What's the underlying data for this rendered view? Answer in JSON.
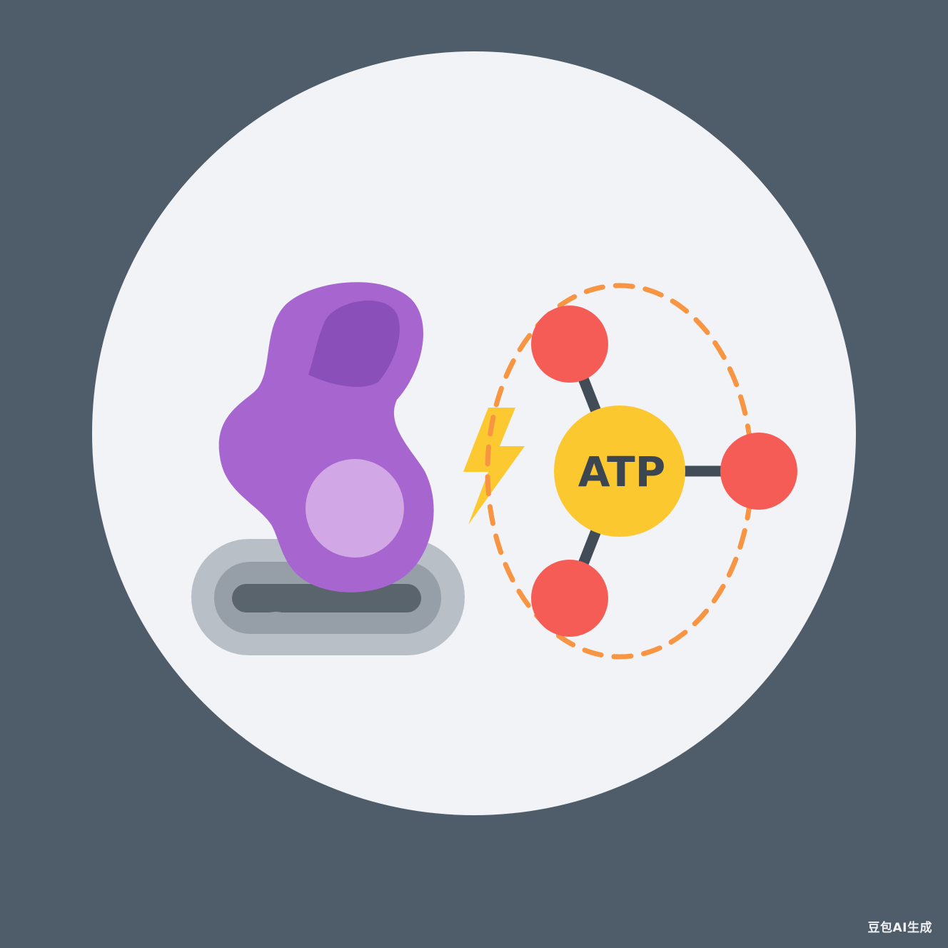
{
  "illustration": {
    "subject": "enzyme-atp-binding",
    "atp_label": "ATP"
  },
  "watermark": {
    "text": "豆包AI生成"
  },
  "colors": {
    "background": "#4e5d69",
    "circle": "#f2f3f7",
    "enzyme": "#a766cf",
    "enzyme_dark": "#8a4fb9",
    "active_site": "#d1a7e6",
    "membrane_outer": "#b9bfc6",
    "membrane_inner": "#969fa8",
    "membrane_slot": "#59646d",
    "bolt": "#fcc930",
    "atp_core": "#fbc830",
    "atp_text": "#3c4650",
    "phosphate": "#f55c56",
    "bond": "#424c56",
    "dashed_ring": "#f79542"
  },
  "icons": {
    "enzyme": "enzyme-blob-icon",
    "bolt": "lightning-bolt-icon",
    "atp": "atp-molecule-icon"
  }
}
